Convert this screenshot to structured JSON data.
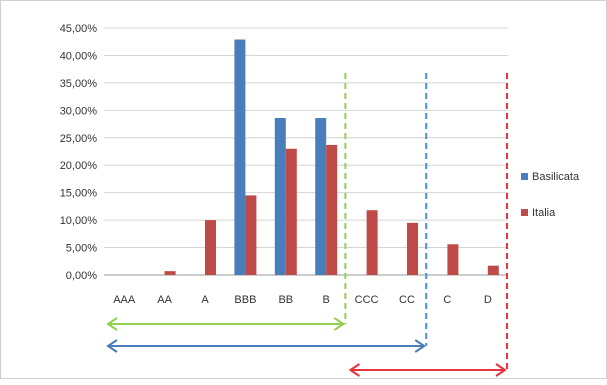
{
  "chart_data": {
    "type": "bar",
    "title": "",
    "xlabel": "",
    "ylabel": "",
    "ylim": [
      0,
      45
    ],
    "y_tick_step": 5,
    "y_tick_labels": [
      "0,00%",
      "5,00%",
      "10,00%",
      "15,00%",
      "20,00%",
      "25,00%",
      "30,00%",
      "35,00%",
      "40,00%",
      "45,00%"
    ],
    "categories": [
      "AAA",
      "AA",
      "A",
      "BBB",
      "BB",
      "B",
      "CCC",
      "CC",
      "C",
      "D"
    ],
    "series": [
      {
        "name": "Basilicata",
        "color": "#4a7ebb",
        "values": [
          0,
          0,
          0,
          42.9,
          28.6,
          28.6,
          0,
          0,
          0,
          0
        ]
      },
      {
        "name": "Italia",
        "color": "#be4b48",
        "values": [
          0,
          0.7,
          10.0,
          14.5,
          23.0,
          23.7,
          11.8,
          9.5,
          5.6,
          1.7
        ]
      }
    ],
    "grid": true,
    "legend_position": "right",
    "annotations": [
      {
        "kind": "dashed-line",
        "after_category": "B",
        "color": "#92d050"
      },
      {
        "kind": "dashed-line",
        "after_category": "CC",
        "color": "#4a90d9"
      },
      {
        "kind": "dashed-line",
        "after_category": "D",
        "color": "#e8323c"
      },
      {
        "kind": "double-arrow",
        "from_category": "AAA",
        "to_category": "B",
        "color": "#92d050"
      },
      {
        "kind": "double-arrow",
        "from_category": "AAA",
        "to_category": "CC",
        "color": "#4a7ebb"
      },
      {
        "kind": "double-arrow",
        "from_category": "CCC",
        "to_category": "D",
        "color": "#e8323c"
      }
    ]
  }
}
